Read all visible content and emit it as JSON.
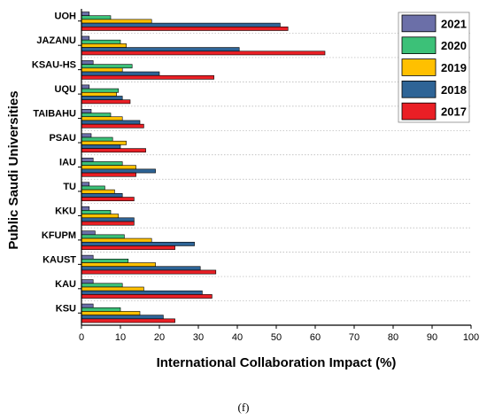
{
  "chart_data": {
    "type": "bar",
    "orientation": "horizontal",
    "categories": [
      "UOH",
      "JAZANU",
      "KSAU-HS",
      "UQU",
      "TAIBAHU",
      "PSAU",
      "IAU",
      "TU",
      "KKU",
      "KFUPM",
      "KAUST",
      "KAU",
      "KSU"
    ],
    "series": [
      {
        "name": "2021",
        "color": "#6b6fa8",
        "values": [
          2,
          2,
          3,
          2,
          2.5,
          2.5,
          3,
          2,
          2,
          3.5,
          3,
          3,
          3
        ]
      },
      {
        "name": "2020",
        "color": "#3cc178",
        "values": [
          7.5,
          10,
          13,
          9.5,
          7.5,
          8,
          10.5,
          6,
          7.5,
          11,
          12,
          10.5,
          10
        ]
      },
      {
        "name": "2019",
        "color": "#ffc000",
        "values": [
          18,
          11.5,
          10.5,
          9,
          10.5,
          11.5,
          14,
          8.5,
          9.5,
          18,
          19,
          16,
          15
        ]
      },
      {
        "name": "2018",
        "color": "#2e6496",
        "values": [
          51,
          40.5,
          20,
          10.5,
          15,
          10,
          19,
          10.5,
          13.5,
          29,
          30.5,
          31,
          21
        ]
      },
      {
        "name": "2017",
        "color": "#ea1f25",
        "values": [
          53,
          62.5,
          34,
          12.5,
          16,
          16.5,
          14,
          13.5,
          13.5,
          24,
          34.5,
          33.5,
          24
        ]
      }
    ],
    "xlabel": "International Collaboration Impact (%)",
    "ylabel": "Public Saudi Universities",
    "xlim": [
      0,
      100
    ],
    "xticks": [
      0,
      10,
      20,
      30,
      40,
      50,
      60,
      70,
      80,
      90,
      100
    ],
    "grid": "dotted horizontal separators",
    "legend_placement": "top-right",
    "legend_order": [
      "2021",
      "2020",
      "2019",
      "2018",
      "2017"
    ]
  },
  "caption": "(f)"
}
